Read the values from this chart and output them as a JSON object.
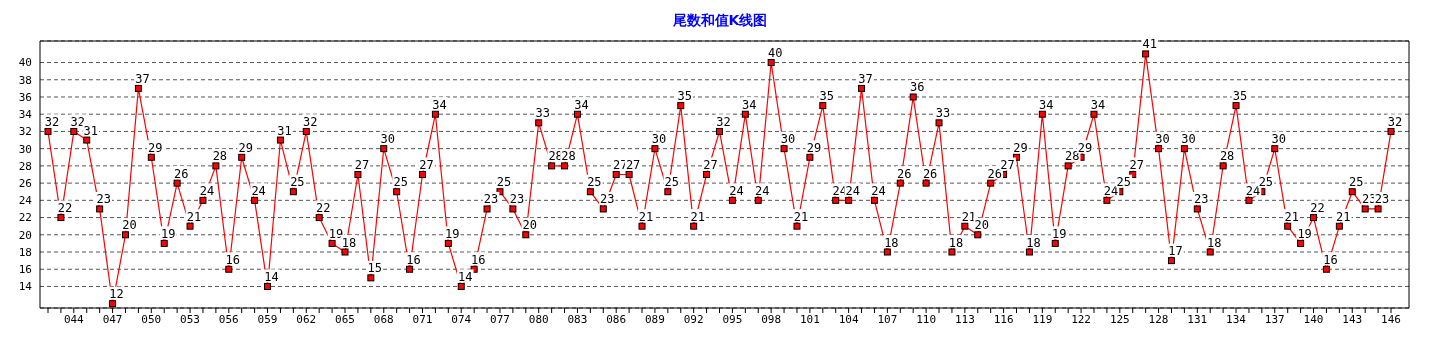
{
  "chart_data": {
    "type": "line",
    "title": "尾数和值K线图",
    "categories": [
      null,
      null,
      "044",
      null,
      null,
      "047",
      null,
      null,
      "050",
      null,
      null,
      "053",
      null,
      null,
      "056",
      null,
      null,
      "059",
      null,
      null,
      "062",
      null,
      null,
      "065",
      null,
      null,
      "068",
      null,
      null,
      "071",
      null,
      null,
      "074",
      null,
      null,
      "077",
      null,
      null,
      "080",
      null,
      null,
      "083",
      null,
      null,
      "086",
      null,
      null,
      "089",
      null,
      null,
      "092",
      null,
      null,
      "095",
      null,
      null,
      "098",
      null,
      null,
      "101",
      null,
      null,
      "104",
      null,
      null,
      "107",
      null,
      null,
      "110",
      null,
      null,
      "113",
      null,
      null,
      "116",
      null,
      null,
      "119",
      null,
      null,
      "122",
      null,
      null,
      "125",
      null,
      null,
      "128",
      null,
      null,
      "131",
      null,
      null,
      "134",
      null,
      null,
      "137",
      null,
      null,
      "140",
      null,
      null,
      "143",
      null,
      null,
      "146"
    ],
    "series": [
      {
        "color": "#ff0000",
        "values": [
          32,
          22,
          32,
          31,
          23,
          12,
          20,
          37,
          29,
          19,
          26,
          21,
          24,
          28,
          16,
          29,
          24,
          14,
          31,
          25,
          32,
          22,
          19,
          18,
          27,
          15,
          30,
          25,
          16,
          27,
          34,
          19,
          14,
          16,
          23,
          25,
          23,
          20,
          33,
          28,
          28,
          34,
          25,
          23,
          27,
          27,
          21,
          30,
          25,
          35,
          21,
          27,
          32,
          24,
          34,
          24,
          40,
          30,
          21,
          29,
          35,
          24,
          24,
          37,
          24,
          18,
          26,
          36,
          26,
          33,
          18,
          21,
          20,
          26,
          27,
          29,
          18,
          34,
          19,
          28,
          29,
          34,
          24,
          25,
          27,
          41,
          30,
          17,
          30,
          23,
          18,
          28,
          35,
          24,
          25,
          30,
          21,
          19,
          22,
          16,
          21,
          25,
          23,
          23,
          32
        ]
      }
    ],
    "ylim": [
      11.5,
      42.5
    ],
    "yticks": [
      14,
      16,
      18,
      20,
      22,
      24,
      26,
      28,
      30,
      32,
      34,
      36,
      38,
      40
    ],
    "grid": "y",
    "marker": "square",
    "line_style": "solid",
    "data_labels": true
  }
}
